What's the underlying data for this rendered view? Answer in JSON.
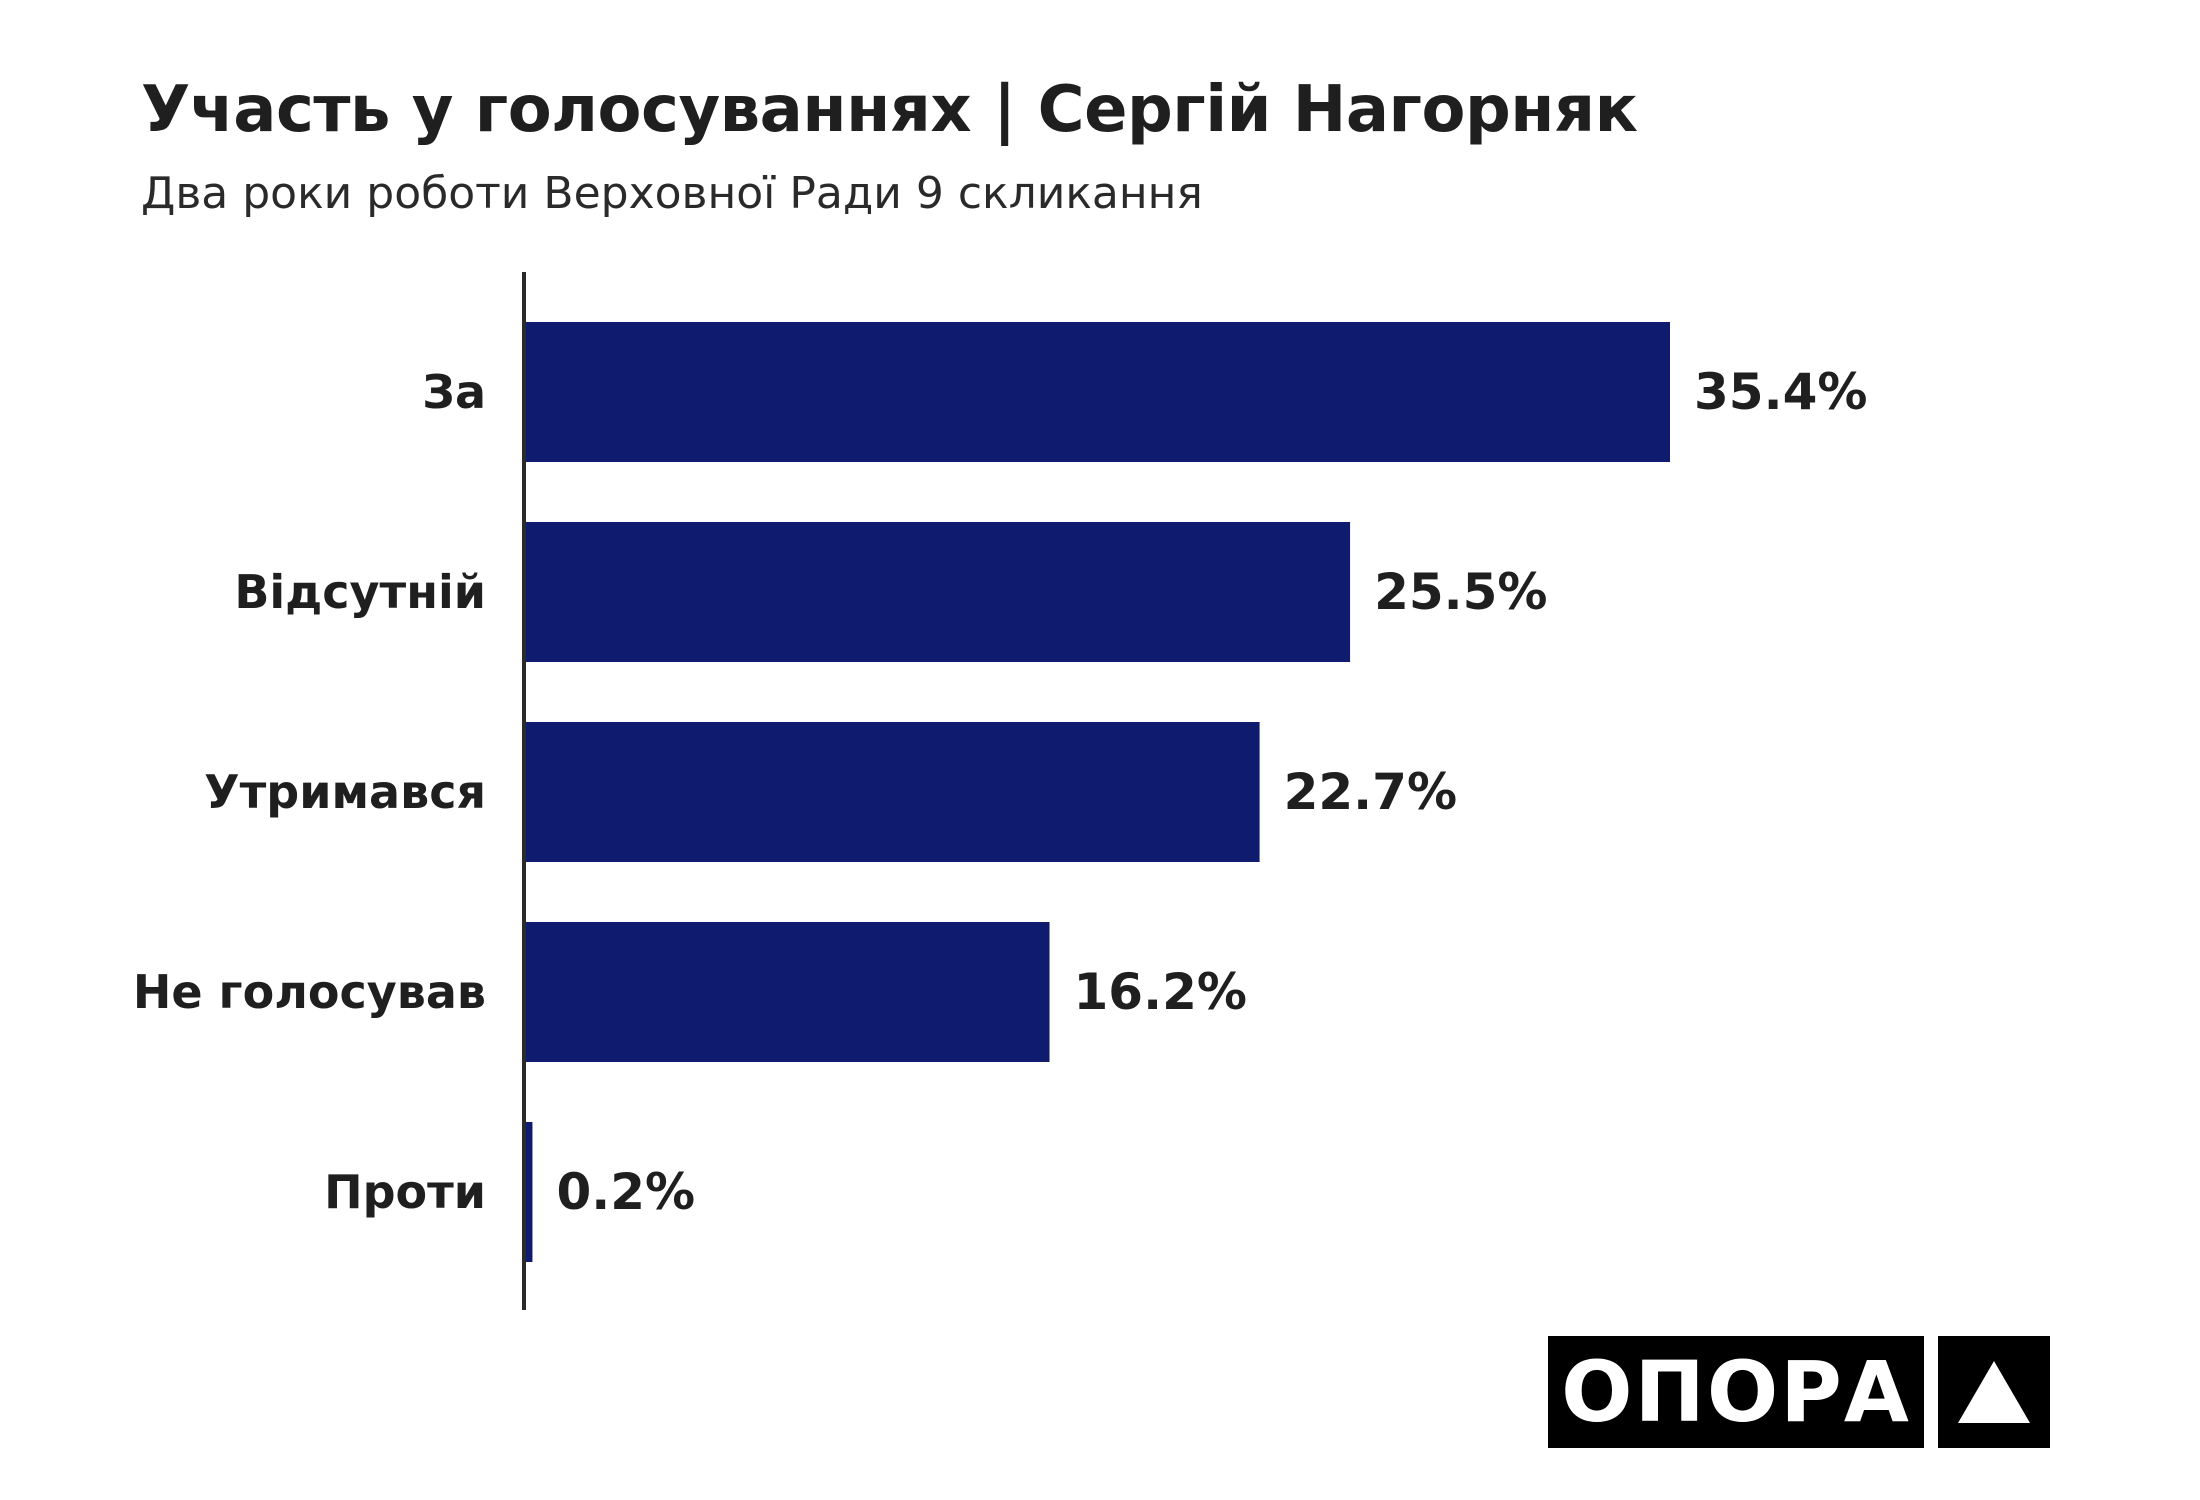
{
  "chart_data": {
    "type": "bar",
    "orientation": "horizontal",
    "title": "Участь у голосуваннях | Сергій Нагорняк",
    "subtitle": "Два роки роботи Верховної Ради 9 скликання",
    "categories": [
      "За",
      "Відсутній",
      "Утримався",
      "Не голосував",
      "Проти"
    ],
    "values": [
      35.4,
      25.5,
      22.7,
      16.2,
      0.2
    ],
    "value_labels": [
      "35.4%",
      "25.5%",
      "22.7%",
      "16.2%",
      "0.2%"
    ],
    "unit": "%",
    "xlim": [
      0,
      35.4
    ],
    "grid": false,
    "legend": "none",
    "bar_color": "#0e1b6e"
  },
  "logo": {
    "text": "ОПОРА",
    "icon": "triangle-icon"
  }
}
